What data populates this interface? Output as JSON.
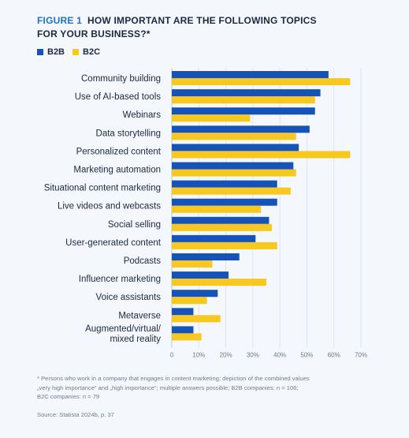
{
  "figure": {
    "label": "FIGURE 1",
    "title_line1": "HOW IMPORTANT ARE THE FOLLOWING TOPICS",
    "title_line2": "FOR YOUR BUSINESS?*"
  },
  "colors": {
    "b2b": "#1553b8",
    "b2c": "#f7c81f",
    "grid": "#d9e2ee"
  },
  "chart_data": {
    "type": "bar",
    "orientation": "horizontal",
    "categories": [
      "Community building",
      "Use of AI-based tools",
      "Webinars",
      "Data storytelling",
      "Personalized content",
      "Marketing automation",
      "Situational content marketing",
      "Live videos and webcasts",
      "Social selling",
      "User-generated content",
      "Podcasts",
      "Influencer marketing",
      "Voice assistants",
      "Metaverse",
      "Augmented/virtual/ mixed reality"
    ],
    "category_lines": [
      [
        "Community building"
      ],
      [
        "Use of AI-based tools"
      ],
      [
        "Webinars"
      ],
      [
        "Data storytelling"
      ],
      [
        "Personalized content"
      ],
      [
        "Marketing automation"
      ],
      [
        "Situational content marketing"
      ],
      [
        "Live videos and webcasts"
      ],
      [
        "Social selling"
      ],
      [
        "User-generated content"
      ],
      [
        "Podcasts"
      ],
      [
        "Influencer marketing"
      ],
      [
        "Voice assistants"
      ],
      [
        "Metaverse"
      ],
      [
        "Augmented/virtual/",
        "mixed reality"
      ]
    ],
    "series": [
      {
        "name": "B2B",
        "values": [
          58,
          55,
          53,
          51,
          47,
          45,
          39,
          39,
          36,
          31,
          25,
          21,
          17,
          8,
          8
        ]
      },
      {
        "name": "B2C",
        "values": [
          66,
          53,
          29,
          46,
          66,
          46,
          44,
          33,
          37,
          39,
          15,
          35,
          13,
          18,
          11
        ]
      }
    ],
    "xlim": [
      0,
      70
    ],
    "xticks": [
      "0",
      "10%",
      "20%",
      "30%",
      "40%",
      "50%",
      "60%",
      "70%"
    ],
    "grid": true,
    "legend": "top-left"
  },
  "footnote": {
    "line1": "* Persons who work in a company that engages in content marketing; depiction of the combined values",
    "line2": "„very high importance“ and „high importance“; multiple answers possible; B2B companies: n = 106;",
    "line3": "B2C companies: n = 79"
  },
  "source": "Source: Statista 2024b, p. 37"
}
